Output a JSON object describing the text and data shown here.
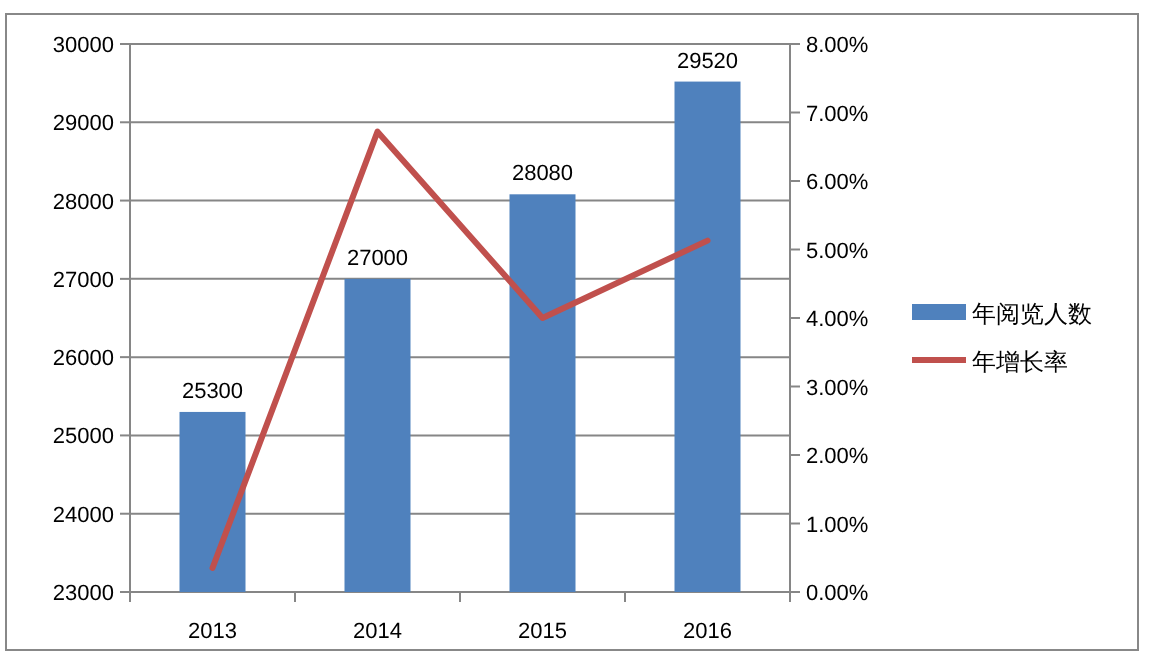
{
  "chart_data": {
    "type": "bar",
    "categories": [
      "2013",
      "2014",
      "2015",
      "2016"
    ],
    "series": [
      {
        "name": "年阅览人数",
        "color": "#4f81bd",
        "values": [
          25300,
          27000,
          28080,
          29520
        ],
        "value_labels": [
          "25300",
          "27000",
          "28080",
          "29520"
        ]
      },
      {
        "name": "年增长率",
        "type": "line",
        "axis": "y2",
        "color": "#c0504d",
        "values": [
          0.35,
          6.72,
          4.0,
          5.13
        ]
      }
    ],
    "ylim": [
      23000,
      30000
    ],
    "yticks": [
      23000,
      24000,
      25000,
      26000,
      27000,
      28000,
      29000,
      30000
    ],
    "y2lim": [
      0,
      8
    ],
    "y2ticks": [
      {
        "value": 0,
        "label": "0.00%"
      },
      {
        "value": 1,
        "label": "1.00%"
      },
      {
        "value": 2,
        "label": "2.00%"
      },
      {
        "value": 3,
        "label": "3.00%"
      },
      {
        "value": 4,
        "label": "4.00%"
      },
      {
        "value": 5,
        "label": "5.00%"
      },
      {
        "value": 6,
        "label": "6.00%"
      },
      {
        "value": 7,
        "label": "7.00%"
      },
      {
        "value": 8,
        "label": "8.00%"
      }
    ],
    "grid": "y",
    "legend": "right"
  }
}
